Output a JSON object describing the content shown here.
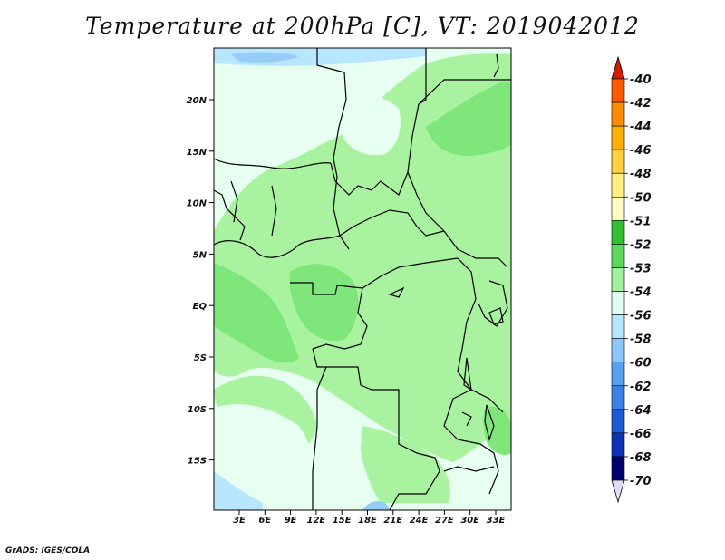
{
  "title": "Temperature at 200hPa [C], VT: 2019042012",
  "credit": "GrADS: IGES/COLA",
  "lat_labels": [
    "20N",
    "15N",
    "10N",
    "5N",
    "EQ",
    "5S",
    "10S",
    "15S"
  ],
  "lon_labels": [
    "3E",
    "6E",
    "9E",
    "12E",
    "15E",
    "18E",
    "21E",
    "24E",
    "27E",
    "30E",
    "33E"
  ],
  "colorbar": {
    "labels": [
      "-40",
      "-42",
      "-44",
      "-46",
      "-48",
      "-50",
      "-51",
      "-52",
      "-53",
      "-54",
      "-56",
      "-58",
      "-60",
      "-62",
      "-64",
      "-66",
      "-68",
      "-70"
    ],
    "colors": [
      "#ff1e00",
      "#ff5a00",
      "#ff8c00",
      "#ffb000",
      "#ffd040",
      "#fff080",
      "#fffcc0",
      "#30c030",
      "#5ed75e",
      "#a0f0a0",
      "#e0fef0",
      "#b4e6ff",
      "#8cc8ff",
      "#5aa0f0",
      "#3c82e6",
      "#1e5ad2",
      "#0a32b4",
      "#00006e"
    ],
    "top_arrow_color": "#d21e00",
    "bottom_arrow_color": "#dcdcf8"
  },
  "map_colors": {
    "land_base": "#e6fff0",
    "green_light": "#a9f3a0",
    "green_mid": "#7ee67a",
    "blue_light": "#b9e6ff",
    "blue_mid": "#96cdf8",
    "border": "#000000"
  }
}
